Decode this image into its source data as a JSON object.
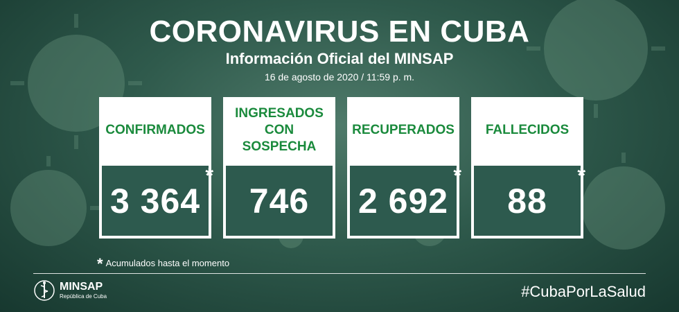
{
  "header": {
    "title": "CORONAVIRUS EN CUBA",
    "subtitle": "Información Oficial del MINSAP",
    "date": "16 de agosto de 2020 / 11:59 p. m."
  },
  "cards": [
    {
      "label": "CONFIRMADOS",
      "value": "3 364",
      "star": "*"
    },
    {
      "label": "INGRESADOS CON SOSPECHA",
      "value": "746",
      "star": ""
    },
    {
      "label": "RECUPERADOS",
      "value": "2 692",
      "star": "*"
    },
    {
      "label": "FALLECIDOS",
      "value": "88",
      "star": "*"
    }
  ],
  "footnote": {
    "star": "*",
    "text": "Acumulados hasta el momento"
  },
  "logo": {
    "name": "MINSAP",
    "subtitle": "República de Cuba",
    "icon": "minsap-emblem-icon"
  },
  "hashtag": "#CubaPorLaSalud",
  "colors": {
    "label_green": "#1a8a3c",
    "card_background": "#2d5a4e",
    "page_background": "#2f5a4c"
  }
}
